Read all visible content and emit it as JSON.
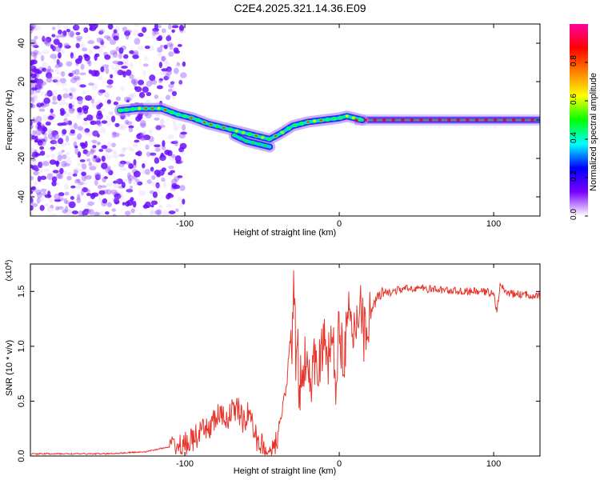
{
  "title": "C2E4.2025.321.14.36.E09",
  "chart_data": [
    {
      "type": "heatmap",
      "xlabel": "Height of straight line (km)",
      "ylabel": "Frequency (Hz)",
      "xlim": [
        -200,
        130
      ],
      "ylim": [
        -50,
        50
      ],
      "xticks": [
        -100,
        0,
        100
      ],
      "xtick_labels": [
        "-100",
        "0",
        "100"
      ],
      "yticks": [
        -40,
        -20,
        0,
        20,
        40
      ],
      "ytick_labels": [
        "-40",
        "-20",
        "0",
        "20",
        "40"
      ],
      "ridge": {
        "x": [
          -142,
          -130,
          -115,
          -105,
          -95,
          -85,
          -75,
          -65,
          -55,
          -45,
          -38,
          -30,
          -20,
          -10,
          0,
          5,
          15,
          30,
          60,
          100,
          130
        ],
        "y": [
          5,
          6,
          6,
          3,
          1,
          -2,
          -4,
          -6,
          -8,
          -10,
          -7,
          -3,
          -1,
          0,
          1,
          2,
          0,
          0,
          0,
          0,
          0
        ],
        "branch_x": [
          -68,
          -60,
          -50,
          -45
        ],
        "branch_y": [
          -8,
          -11,
          -13,
          -14
        ]
      },
      "noise_region_x": [
        -200,
        -100
      ],
      "colorbar": {
        "label": "Normalized spectral amplitude",
        "range": [
          0,
          1
        ],
        "ticks": [
          0.0,
          0.2,
          0.4,
          0.6,
          0.8
        ],
        "tick_labels": [
          "0.0",
          "0.2",
          "0.4",
          "0.6",
          "0.8"
        ],
        "colors": [
          "#ffffff",
          "#7b00ff",
          "#0000ff",
          "#00ffff",
          "#00ff00",
          "#ffff00",
          "#ff8000",
          "#ff0000",
          "#ff00a0"
        ]
      }
    },
    {
      "type": "line",
      "xlabel": "Height of straight line (km)",
      "ylabel": "SNR (10 * v/v)",
      "y_multiplier": "(x10",
      "y_multiplier_exp": "4",
      "y_multiplier_close": ")",
      "xlim": [
        -200,
        130
      ],
      "ylim": [
        0,
        1.75
      ],
      "xticks": [
        -100,
        0,
        100
      ],
      "xtick_labels": [
        "-100",
        "0",
        "100"
      ],
      "yticks": [
        0,
        0.5,
        1.0,
        1.5
      ],
      "ytick_labels": [
        "0.0",
        "0.5",
        "1.0",
        "1.5"
      ],
      "color": "#e8352b",
      "series": [
        {
          "name": "SNR",
          "x": [
            -200,
            -150,
            -125,
            -115,
            -100,
            -92,
            -86,
            -82,
            -78,
            -74,
            -70,
            -66,
            -62,
            -58,
            -55,
            -52,
            -48,
            -45,
            -42,
            -40,
            -38,
            -36,
            -34,
            -32,
            -31,
            -30,
            -29,
            -28,
            -27,
            -26,
            -24,
            -22,
            -20,
            -18,
            -15,
            -12,
            -10,
            -8,
            -5,
            -2,
            0,
            3,
            6,
            9,
            12,
            14,
            16,
            18,
            20,
            23,
            26,
            30,
            35,
            40,
            50,
            60,
            70,
            80,
            90,
            100,
            102,
            104,
            110,
            120,
            130
          ],
          "y": [
            0.02,
            0.02,
            0.04,
            0.07,
            0.1,
            0.18,
            0.24,
            0.3,
            0.38,
            0.32,
            0.4,
            0.44,
            0.3,
            0.42,
            0.2,
            0.12,
            0.08,
            0.05,
            0.06,
            0.15,
            0.3,
            0.45,
            0.6,
            1.0,
            0.9,
            1.25,
            1.72,
            0.7,
            1.05,
            0.45,
            0.9,
            0.85,
            0.98,
            0.6,
            0.95,
            0.85,
            1.05,
            0.8,
            1.1,
            0.7,
            1.15,
            0.95,
            1.25,
            1.05,
            1.32,
            1.45,
            1.1,
            1.2,
            1.3,
            1.4,
            1.45,
            1.48,
            1.5,
            1.52,
            1.53,
            1.52,
            1.51,
            1.5,
            1.5,
            1.49,
            1.3,
            1.55,
            1.48,
            1.47,
            1.46
          ]
        }
      ]
    }
  ]
}
